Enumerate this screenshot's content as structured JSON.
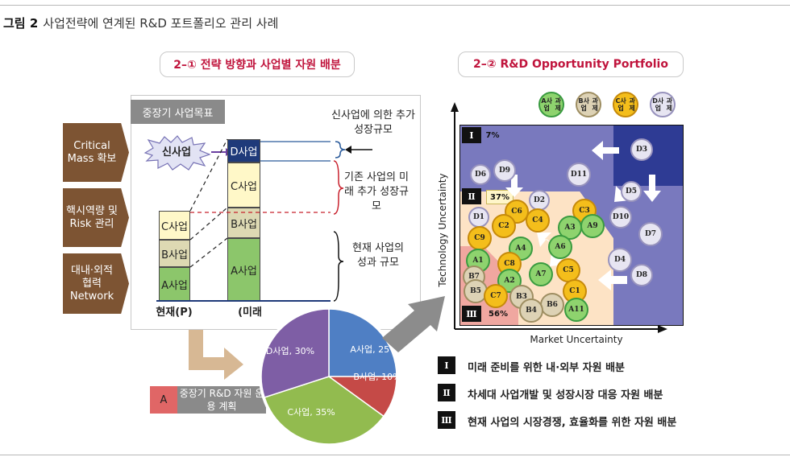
{
  "caption": {
    "figure_label": "그림 2",
    "title": "사업전략에 연계된 R&D 포트폴리오 관리 사례"
  },
  "left_panel": {
    "header": "2–① 전략 방향과 사업별 자원 배분",
    "goal_header": "중장기 사업목표",
    "strategies": [
      "Critical Mass 확보",
      "핵시역량 및 Risk 관리",
      "대내·외적 협력 Network"
    ],
    "new_business": "신사업",
    "present_stack": [
      "C사업",
      "B사업",
      "A사업"
    ],
    "future_stack": [
      "D사업",
      "C사업",
      "B사업",
      "A사업"
    ],
    "present_label": "현재(P)",
    "future_label": "(미래",
    "annotations": [
      "신사업에 의한 추가 성장규모",
      "기존 사업의 미래 추가 성장규모",
      "현재 사업의 성과 규모"
    ],
    "plan_tag": "A",
    "plan_label": "중장기 R&D 자원 운용 계획",
    "pie": [
      {
        "label": "A사업, 25%",
        "value": 25,
        "color": "#4f7fc4"
      },
      {
        "label": "B사업, 10%",
        "value": 10,
        "color": "#c54a47"
      },
      {
        "label": "C사업, 35%",
        "value": 35,
        "color": "#92bb4f"
      },
      {
        "label": "D사업, 30%",
        "value": 30,
        "color": "#7e5ea5"
      }
    ]
  },
  "right_panel": {
    "header": "2–② R&D Opportunity Portfolio",
    "legend_circles": [
      {
        "line1": "A사업",
        "line2": "과제",
        "fill": "#8ed36e",
        "stroke": "#3a9b40"
      },
      {
        "line1": "B사업",
        "line2": "과제",
        "fill": "#ddd2b5",
        "stroke": "#9e8e62"
      },
      {
        "line1": "C사업",
        "line2": "과제",
        "fill": "#f4be1b",
        "stroke": "#c68a0a"
      },
      {
        "line1": "D사업",
        "line2": "과제",
        "fill": "#e7e5f2",
        "stroke": "#9893bd"
      }
    ],
    "y_axis_label": "Technology Uncertainty",
    "x_axis_label": "Market Uncertainty",
    "zones": [
      {
        "roman": "Ⅰ",
        "pct": "7%"
      },
      {
        "roman": "Ⅱ",
        "pct": "37%"
      },
      {
        "roman": "Ⅲ",
        "pct": "56%"
      }
    ],
    "projects": [
      "D3",
      "D6",
      "D9",
      "D11",
      "D5",
      "D2",
      "C6",
      "C4",
      "C3",
      "D10",
      "D7",
      "D1",
      "C2",
      "A3",
      "A9",
      "C9",
      "A4",
      "A6",
      "D4",
      "A1",
      "C8",
      "A7",
      "C5",
      "D8",
      "B7",
      "A2",
      "B5",
      "C7",
      "B3",
      "C1",
      "B6",
      "B4",
      "A11"
    ],
    "legend_items": [
      {
        "roman": "Ⅰ",
        "text": "미래 준비를 위한 내·외부 자원 배분"
      },
      {
        "roman": "Ⅱ",
        "text": "차세대 사업개발 및 성장시장 대응 자원 배분"
      },
      {
        "roman": "Ⅲ",
        "text": "현재 사업의 시장경쟁, 효율화를 위한 자원 배분"
      }
    ]
  }
}
